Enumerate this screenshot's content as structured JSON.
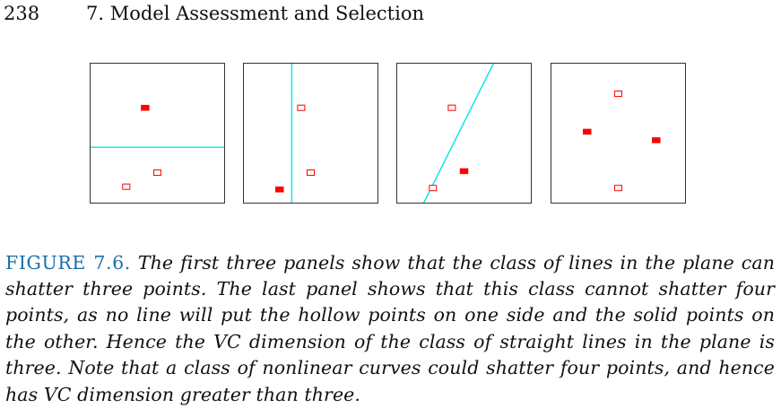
{
  "page": {
    "number": "238",
    "chapter_title": "7. Model Assessment and Selection"
  },
  "figure": {
    "label": "FIGURE 7.6.",
    "caption": "The first three panels show that the class of lines in the plane can shatter three points. The last panel shows that this class cannot shatter four points, as no line will put the hollow points on one side and the solid points on the other. Hence the VC dimension of the class of straight lines in the plane is three. Note that a class of nonlinear curves could shatter four points, and hence has VC dimension greater than three.",
    "colors": {
      "point": "#ff0000",
      "line": "#00e5ee",
      "frame": "#333333",
      "label": "#1b6fa8"
    },
    "panels": [
      {
        "points": [
          {
            "x": 0.41,
            "y": 0.68,
            "style": "solid"
          },
          {
            "x": 0.5,
            "y": 0.22,
            "style": "hollow"
          },
          {
            "x": 0.27,
            "y": 0.12,
            "style": "hollow"
          }
        ],
        "line": {
          "x1": 0.0,
          "y1": 0.4,
          "x2": 1.0,
          "y2": 0.4
        }
      },
      {
        "points": [
          {
            "x": 0.43,
            "y": 0.68,
            "style": "hollow"
          },
          {
            "x": 0.5,
            "y": 0.22,
            "style": "hollow"
          },
          {
            "x": 0.27,
            "y": 0.1,
            "style": "solid"
          }
        ],
        "line": {
          "x1": 0.36,
          "y1": 1.0,
          "x2": 0.36,
          "y2": 0.0
        }
      },
      {
        "points": [
          {
            "x": 0.41,
            "y": 0.68,
            "style": "hollow"
          },
          {
            "x": 0.5,
            "y": 0.23,
            "style": "solid"
          },
          {
            "x": 0.27,
            "y": 0.11,
            "style": "hollow"
          }
        ],
        "line": {
          "x1": 0.2,
          "y1": 0.0,
          "x2": 0.72,
          "y2": 1.0
        }
      },
      {
        "points": [
          {
            "x": 0.5,
            "y": 0.78,
            "style": "hollow"
          },
          {
            "x": 0.27,
            "y": 0.51,
            "style": "solid"
          },
          {
            "x": 0.78,
            "y": 0.45,
            "style": "solid"
          },
          {
            "x": 0.5,
            "y": 0.11,
            "style": "hollow"
          }
        ],
        "line": null
      }
    ]
  }
}
